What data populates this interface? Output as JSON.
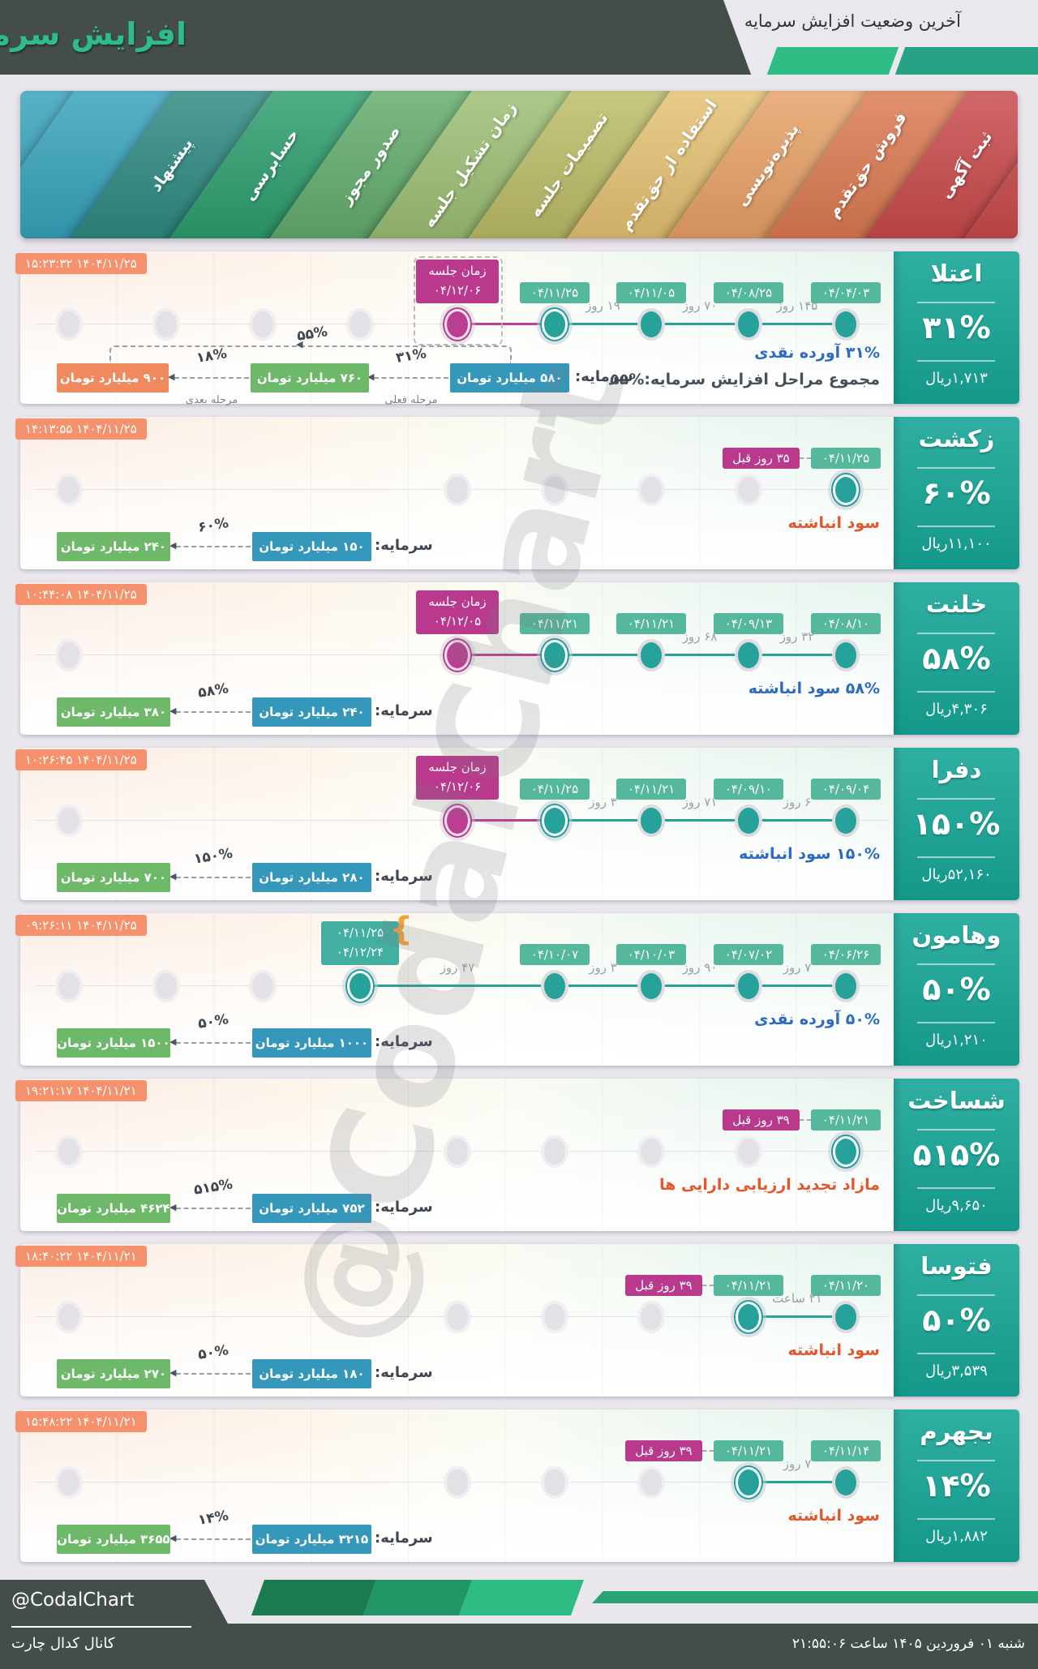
{
  "header": {
    "top_title": "آخرین وضعیت افزایش سرمایه",
    "main_title": "افزایش سرمایه"
  },
  "watermark": "@CodalChart",
  "colors": {
    "accent_teal": "#26A29A",
    "magenta": "#BC3E92",
    "badge_green": "#55B79B",
    "box_blue": "#3598BA",
    "box_green": "#6DB869",
    "box_orange": "#EF8A5E",
    "timestamp_bg": "#F5916C",
    "note_blue": "#2E6BC0",
    "note_orange": "#E2572E",
    "panel_teal": "#2FAFA2",
    "dark": "#434E49",
    "page_bg": "#E9E6EC",
    "header_green": "#2EBD8A"
  },
  "banner": {
    "stages": [
      {
        "label": "ثبت آگهی",
        "color": "#C94A4C"
      },
      {
        "label": "فروش حق‌تقدم",
        "color": "#DC7A52"
      },
      {
        "label": "پذیره‌نویسی",
        "color": "#E8A168"
      },
      {
        "label": "استفاده از حق‌تقدم",
        "color": "#E5C173"
      },
      {
        "label": "تصمیمات جلسه",
        "color": "#BCBD68"
      },
      {
        "label": "زمان تشکیل جلسه",
        "color": "#9DBF74"
      },
      {
        "label": "صدور مجوز",
        "color": "#63AC6D"
      },
      {
        "label": "حسابرسی",
        "color": "#2D9E6F"
      },
      {
        "label": "پیشنهاد",
        "color": "#2E8A81"
      },
      {
        "label": "",
        "color": "#37A3BC"
      }
    ]
  },
  "chart_data": {
    "type": "table",
    "title": "آخرین وضعیت افزایش سرمایه",
    "stage_axis": [
      "پیشنهاد",
      "حسابرسی",
      "صدور مجوز",
      "زمان تشکیل جلسه",
      "تصمیمات جلسه",
      "استفاده از حق‌تقدم",
      "پذیره‌نویسی",
      "فروش حق‌تقدم",
      "ثبت آگهی"
    ],
    "companies": [
      "اعتلا",
      "زکشت",
      "خلنت",
      "دفرا",
      "وهامون",
      "شساخت",
      "فتوسا",
      "بجهرم"
    ],
    "increase_percent": [
      31,
      60,
      58,
      150,
      50,
      515,
      50,
      14
    ],
    "price_rial": [
      "۱,۷۱۳",
      "۱۱,۱۰۰",
      "۴,۳۰۶",
      "۵۲,۱۶۰",
      "۱,۲۱۰",
      "۹,۶۵۰",
      "۳,۵۳۹",
      "۱,۸۸۲"
    ],
    "capital_before_miliard_toman": [
      580,
      150,
      240,
      280,
      1000,
      752,
      180,
      3215
    ],
    "capital_after_miliard_toman": [
      760,
      240,
      380,
      700,
      1500,
      4624,
      270,
      3655
    ]
  },
  "rows": [
    {
      "timestamp": "۱۴۰۴/۱۱/۲۵ ۱۵:۲۳:۳۲",
      "company": {
        "name": "اعتلا",
        "percent": "۳۱%",
        "price": "۱,۷۱۳ریال"
      },
      "gray_dots": [
        1,
        2,
        3,
        4
      ],
      "meeting": {
        "col": 5,
        "title": "زمان جلسه",
        "date": "۰۴/۱۲/۰۶",
        "outlined": true
      },
      "current_col": 6,
      "teal_dots": [
        7,
        8,
        9
      ],
      "date_badges": [
        {
          "col": 6,
          "label": "۰۴/۱۱/۲۵"
        },
        {
          "col": 7,
          "label": "۰۴/۱۱/۰۵"
        },
        {
          "col": 8,
          "label": "۰۴/۰۸/۲۵"
        },
        {
          "col": 9,
          "label": "۰۴/۰۴/۰۳"
        }
      ],
      "gaps": [
        {
          "a": 6,
          "b": 7,
          "label": "۱۹ روز"
        },
        {
          "a": 7,
          "b": 8,
          "label": "۷۰ روز"
        },
        {
          "a": 8,
          "b": 9,
          "label": "۱۴۵ روز"
        }
      ],
      "segments": [
        {
          "type": "magenta",
          "a": 5,
          "b": 6
        },
        {
          "type": "teal",
          "a": 6,
          "b": 9
        }
      ],
      "notes": [
        {
          "pct": "۳۱%",
          "text": "آورده نقدی",
          "color": "blue",
          "pct_side": "right"
        },
        {
          "pct": "۵۵%",
          "text": "مجموع مراحل افزایش سرمایه:",
          "color": "dark",
          "pct_side": "left"
        }
      ],
      "capital": {
        "extended": true,
        "label": "سرمایه:",
        "current": "۵۸۰ میلیارد تومان",
        "stage1": {
          "value": "۷۶۰ میلیارد تومان",
          "percent": "۳۱%",
          "sub": "مرحله فعلی"
        },
        "stage2": {
          "value": "۹۰۰ میلیارد تومان",
          "percent": "۱۸%",
          "sub": "مرحله بعدی"
        },
        "total_percent": "۵۵%"
      }
    },
    {
      "timestamp": "۱۴۰۴/۱۱/۲۵ ۱۴:۱۳:۵۵",
      "company": {
        "name": "زکشت",
        "percent": "۶۰%",
        "price": "۱۱,۱۰۰ریال"
      },
      "gray_dots": [
        1,
        5,
        6,
        7,
        8
      ],
      "current_col": 9,
      "teal_dots": [],
      "ago_badge": {
        "label": "۳۵ روز قبل",
        "col": 9
      },
      "date_badges": [
        {
          "col": 9,
          "label": "۰۴/۱۱/۲۵"
        }
      ],
      "gaps": [],
      "segments": [],
      "notes": [
        {
          "pct": "",
          "text": "سود انباشته",
          "color": "orange",
          "pct_side": "right"
        }
      ],
      "capital": {
        "extended": false,
        "label": "سرمایه:",
        "current": "۱۵۰ میلیارد تومان",
        "stage1": {
          "value": "۲۴۰ میلیارد تومان",
          "percent": "۶۰%",
          "sub": ""
        }
      }
    },
    {
      "timestamp": "۱۴۰۴/۱۱/۲۵ ۱۰:۴۴:۰۸",
      "company": {
        "name": "خلنت",
        "percent": "۵۸%",
        "price": "۴,۳۰۶ریال"
      },
      "gray_dots": [
        1
      ],
      "meeting": {
        "col": 5,
        "title": "زمان جلسه",
        "date": "۰۴/۱۲/۰۵",
        "outlined": false
      },
      "current_col": 6,
      "teal_dots": [
        7,
        8,
        9
      ],
      "date_badges": [
        {
          "col": 6,
          "label": "۰۴/۱۱/۲۱"
        },
        {
          "col": 7,
          "label": "۰۴/۱۱/۲۱"
        },
        {
          "col": 8,
          "label": "۰۴/۰۹/۱۳"
        },
        {
          "col": 9,
          "label": "۰۴/۰۸/۱۰"
        }
      ],
      "gaps": [
        {
          "a": 7,
          "b": 8,
          "label": "۶۸ روز"
        },
        {
          "a": 8,
          "b": 9,
          "label": "۳۲ روز"
        }
      ],
      "segments": [
        {
          "type": "magenta",
          "a": 5,
          "b": 6
        },
        {
          "type": "teal",
          "a": 6,
          "b": 9
        }
      ],
      "notes": [
        {
          "pct": "۵۸%",
          "text": "سود انباشته",
          "color": "blue",
          "pct_side": "right"
        }
      ],
      "capital": {
        "extended": false,
        "label": "سرمایه:",
        "current": "۲۴۰ میلیارد تومان",
        "stage1": {
          "value": "۳۸۰ میلیارد تومان",
          "percent": "۵۸%",
          "sub": ""
        }
      }
    },
    {
      "timestamp": "۱۴۰۴/۱۱/۲۵ ۱۰:۲۶:۴۵",
      "company": {
        "name": "دفرا",
        "percent": "۱۵۰%",
        "price": "۵۲,۱۶۰ریال"
      },
      "gray_dots": [
        1
      ],
      "meeting": {
        "col": 5,
        "title": "زمان جلسه",
        "date": "۰۴/۱۲/۰۶",
        "outlined": false
      },
      "current_col": 6,
      "teal_dots": [
        7,
        8,
        9
      ],
      "date_badges": [
        {
          "col": 6,
          "label": "۰۴/۱۱/۲۵"
        },
        {
          "col": 7,
          "label": "۰۴/۱۱/۲۱"
        },
        {
          "col": 8,
          "label": "۰۴/۰۹/۱۰"
        },
        {
          "col": 9,
          "label": "۰۴/۰۹/۰۴"
        }
      ],
      "gaps": [
        {
          "a": 6,
          "b": 7,
          "label": "۳ روز"
        },
        {
          "a": 7,
          "b": 8,
          "label": "۷۱ روز"
        },
        {
          "a": 8,
          "b": 9,
          "label": "۶ روز"
        }
      ],
      "segments": [
        {
          "type": "magenta",
          "a": 5,
          "b": 6
        },
        {
          "type": "teal",
          "a": 6,
          "b": 9
        }
      ],
      "notes": [
        {
          "pct": "۱۵۰%",
          "text": "سود انباشته",
          "color": "blue",
          "pct_side": "right"
        }
      ],
      "capital": {
        "extended": false,
        "label": "سرمایه:",
        "current": "۲۸۰ میلیارد تومان",
        "stage1": {
          "value": "۷۰۰ میلیارد تومان",
          "percent": "۱۵۰%",
          "sub": ""
        }
      }
    },
    {
      "timestamp": "۱۴۰۴/۱۱/۲۵ ۰۹:۲۶:۱۱",
      "company": {
        "name": "وهامون",
        "percent": "۵۰%",
        "price": "۱,۲۱۰ریال"
      },
      "gray_dots": [
        1,
        2,
        3
      ],
      "range_badge": {
        "col": 4,
        "line1": "۰۴/۱۱/۲۵",
        "line2": "۰۴/۱۲/۲۴"
      },
      "current_col": 4,
      "teal_dots": [
        6,
        7,
        8,
        9
      ],
      "date_badges": [
        {
          "col": 6,
          "label": "۰۴/۱۰/۰۷"
        },
        {
          "col": 7,
          "label": "۰۴/۱۰/۰۳"
        },
        {
          "col": 8,
          "label": "۰۴/۰۷/۰۲"
        },
        {
          "col": 9,
          "label": "۰۴/۰۶/۲۶"
        }
      ],
      "gaps": [
        {
          "a": 4,
          "b": 6,
          "label": "۴۷ روز"
        },
        {
          "a": 6,
          "b": 7,
          "label": "۳ روز"
        },
        {
          "a": 7,
          "b": 8,
          "label": "۹۰ روز"
        },
        {
          "a": 8,
          "b": 9,
          "label": "۷ روز"
        }
      ],
      "segments": [
        {
          "type": "teal",
          "a": 4,
          "b": 9
        }
      ],
      "notes": [
        {
          "pct": "۵۰%",
          "text": "آورده نقدی",
          "color": "blue",
          "pct_side": "right"
        }
      ],
      "capital": {
        "extended": false,
        "label": "سرمایه:",
        "current": "۱۰۰۰ میلیارد تومان",
        "stage1": {
          "value": "۱۵۰۰ میلیارد تومان",
          "percent": "۵۰%",
          "sub": ""
        }
      }
    },
    {
      "timestamp": "۱۴۰۴/۱۱/۲۱ ۱۹:۲۱:۱۷",
      "company": {
        "name": "شساخت",
        "percent": "۵۱۵%",
        "price": "۹,۶۵۰ریال"
      },
      "gray_dots": [
        1,
        5,
        6,
        7,
        8
      ],
      "current_col": 9,
      "teal_dots": [],
      "ago_badge": {
        "label": "۳۹ روز قبل",
        "col": 9
      },
      "date_badges": [
        {
          "col": 9,
          "label": "۰۴/۱۱/۲۱"
        }
      ],
      "gaps": [],
      "segments": [],
      "notes": [
        {
          "pct": "",
          "text": "مازاد تجدید ارزیابی دارایی ها",
          "color": "orange",
          "pct_side": "right"
        }
      ],
      "capital": {
        "extended": false,
        "label": "سرمایه:",
        "current": "۷۵۲ میلیارد تومان",
        "stage1": {
          "value": "۴۶۲۴ میلیارد تومان",
          "percent": "۵۱۵%",
          "sub": ""
        }
      }
    },
    {
      "timestamp": "۱۴۰۴/۱۱/۲۱ ۱۸:۴۰:۲۲",
      "company": {
        "name": "فتوسا",
        "percent": "۵۰%",
        "price": "۳,۵۳۹ریال"
      },
      "gray_dots": [
        1,
        5,
        6,
        7
      ],
      "current_col": 8,
      "teal_dots": [
        9
      ],
      "ago_badge": {
        "label": "۳۹ روز قبل",
        "col": 8
      },
      "date_badges": [
        {
          "col": 8,
          "label": "۰۴/۱۱/۲۱"
        },
        {
          "col": 9,
          "label": "۰۴/۱۱/۲۰"
        }
      ],
      "gaps": [
        {
          "a": 8,
          "b": 9,
          "label": "۲۱ ساعت"
        }
      ],
      "segments": [
        {
          "type": "teal",
          "a": 8,
          "b": 9
        }
      ],
      "notes": [
        {
          "pct": "",
          "text": "سود انباشته",
          "color": "orange",
          "pct_side": "right"
        }
      ],
      "capital": {
        "extended": false,
        "label": "سرمایه:",
        "current": "۱۸۰ میلیارد تومان",
        "stage1": {
          "value": "۲۷۰ میلیارد تومان",
          "percent": "۵۰%",
          "sub": ""
        }
      }
    },
    {
      "timestamp": "۱۴۰۴/۱۱/۲۱ ۱۵:۴۸:۲۲",
      "company": {
        "name": "بجهرم",
        "percent": "۱۴%",
        "price": "۱,۸۸۲ریال"
      },
      "gray_dots": [
        1,
        5,
        6,
        7
      ],
      "current_col": 8,
      "teal_dots": [
        9
      ],
      "ago_badge": {
        "label": "۳۹ روز قبل",
        "col": 8
      },
      "date_badges": [
        {
          "col": 8,
          "label": "۰۴/۱۱/۲۱"
        },
        {
          "col": 9,
          "label": "۰۴/۱۱/۱۴"
        }
      ],
      "gaps": [
        {
          "a": 8,
          "b": 9,
          "label": "۷ روز"
        }
      ],
      "segments": [
        {
          "type": "teal",
          "a": 8,
          "b": 9
        }
      ],
      "notes": [
        {
          "pct": "",
          "text": "سود انباشته",
          "color": "orange",
          "pct_side": "right"
        }
      ],
      "capital": {
        "extended": false,
        "label": "سرمایه:",
        "current": "۳۲۱۵ میلیارد تومان",
        "stage1": {
          "value": "۳۶۵۵ میلیارد تومان",
          "percent": "۱۴%",
          "sub": ""
        }
      }
    }
  ],
  "footer": {
    "handle": "@CodalChart",
    "channel": "کانال کدال چارت",
    "datetime": "شنبه ۰۱ فروردین ۱۴۰۵ ساعت ۲۱:۵۵:۰۶"
  }
}
